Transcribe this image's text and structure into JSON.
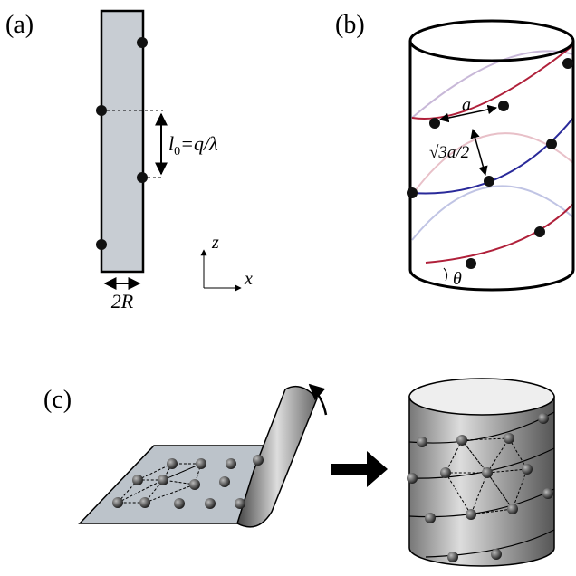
{
  "panel_a": {
    "label": "(a)",
    "length_label": {
      "base": "l",
      "sub": "0",
      "rest": "=q/λ"
    },
    "width_label": "2R",
    "axis_z": "z",
    "axis_x": "x"
  },
  "panel_b": {
    "label": "(b)",
    "spacing_label": "a",
    "height_label": "√3a/2",
    "angle_label": "θ"
  },
  "panel_c": {
    "label": "(c)"
  }
}
